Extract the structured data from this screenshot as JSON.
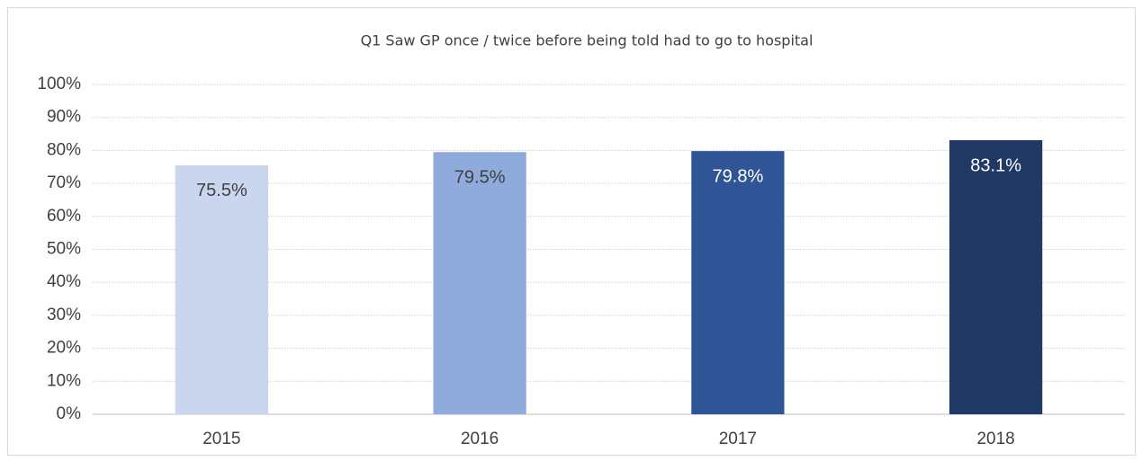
{
  "chart_data": {
    "type": "bar",
    "title": "Q1 Saw GP once / twice before being told had to go to hospital",
    "categories": [
      "2015",
      "2016",
      "2017",
      "2018"
    ],
    "values": [
      75.5,
      79.5,
      79.8,
      83.1
    ],
    "value_labels": [
      "75.5%",
      "79.5%",
      "79.8%",
      "83.1%"
    ],
    "colors": [
      "#c9d6ee",
      "#8eabdc",
      "#2f5597",
      "#1f3864"
    ],
    "value_label_colors": [
      "#404040",
      "#404040",
      "#ffffff",
      "#ffffff"
    ],
    "ylim": [
      0,
      100
    ],
    "yticks": [
      {
        "value": 0,
        "label": "0%"
      },
      {
        "value": 10,
        "label": "10%"
      },
      {
        "value": 20,
        "label": "20%"
      },
      {
        "value": 30,
        "label": "30%"
      },
      {
        "value": 40,
        "label": "40%"
      },
      {
        "value": 50,
        "label": "50%"
      },
      {
        "value": 60,
        "label": "60%"
      },
      {
        "value": 70,
        "label": "70%"
      },
      {
        "value": 80,
        "label": "80%"
      },
      {
        "value": 90,
        "label": "90%"
      },
      {
        "value": 100,
        "label": "100%"
      }
    ],
    "grid": true
  }
}
